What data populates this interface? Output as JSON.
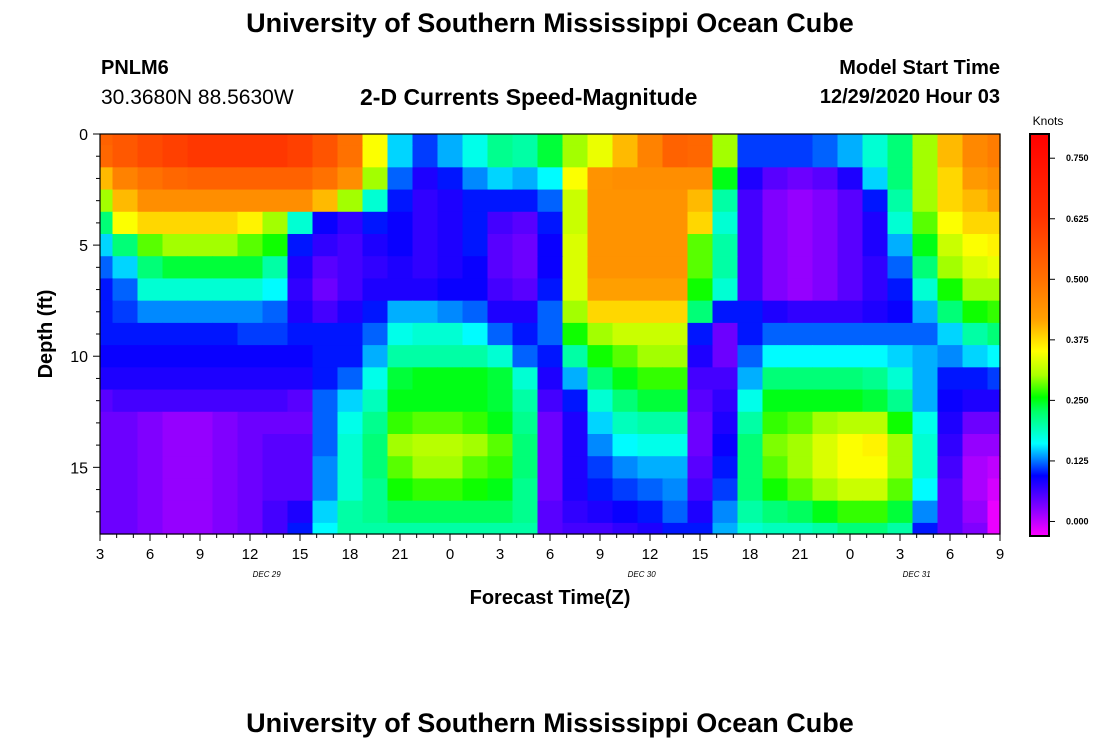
{
  "header": {
    "title": "University of Southern Mississippi Ocean Cube",
    "station_id": "PNLM6",
    "station_coords": "30.3680N 88.5630W",
    "model_start_label": "Model Start Time",
    "model_start_value": "12/29/2020 Hour 03"
  },
  "footer": {
    "title": "University of Southern Mississippi Ocean Cube"
  },
  "chart_data": {
    "type": "heatmap",
    "title": "2-D Currents Speed-Magnitude",
    "xlabel": "Forecast Time(Z)",
    "ylabel": "Depth (ft)",
    "x_tick_labels": [
      "3",
      "6",
      "9",
      "12",
      "15",
      "18",
      "21",
      "0",
      "3",
      "6",
      "9",
      "12",
      "15",
      "18",
      "21",
      "0",
      "3",
      "6",
      "9"
    ],
    "x_hours_from_start": [
      0,
      3,
      6,
      9,
      12,
      15,
      18,
      21,
      24,
      27,
      30,
      33,
      36,
      39,
      42,
      45,
      48,
      51,
      54
    ],
    "xlim_hours": [
      0,
      54
    ],
    "date_labels": [
      {
        "text": "DEC  29",
        "hour": 10
      },
      {
        "text": "DEC  30",
        "hour": 32.5
      },
      {
        "text": "DEC  31",
        "hour": 49
      }
    ],
    "y_tick_labels": [
      "0",
      "5",
      "10",
      "15"
    ],
    "y_ticks": [
      0,
      5,
      10,
      15
    ],
    "ylim": [
      0,
      18
    ],
    "y_inverted": true,
    "grid": false,
    "colorbar": {
      "title": "Knots",
      "range": [
        -0.03,
        0.8
      ],
      "tick_labels": [
        "0.000",
        "0.125",
        "0.250",
        "0.375",
        "0.500",
        "0.625",
        "0.750"
      ],
      "tick_values": [
        0,
        0.125,
        0.25,
        0.375,
        0.5,
        0.625,
        0.75
      ]
    },
    "speed_grid": {
      "time_hours": [
        0,
        1.5,
        3,
        4.5,
        6,
        7.5,
        9,
        10.5,
        12,
        13.5,
        15,
        16.5,
        18,
        19.5,
        21,
        22.5,
        24,
        25.5,
        27,
        28.5,
        30,
        31.5,
        33,
        34.5,
        36,
        37.5,
        39,
        40.5,
        42,
        43.5,
        45,
        46.5,
        48,
        49.5,
        51,
        52.5,
        54
      ],
      "depth_ft": [
        0,
        1,
        2,
        3,
        4,
        5,
        6,
        7,
        8,
        9,
        10,
        11,
        12,
        13,
        14,
        15,
        16,
        17,
        18
      ],
      "values": [
        [
          0.53,
          0.55,
          0.58,
          0.6,
          0.62,
          0.62,
          0.62,
          0.62,
          0.6,
          0.56,
          0.5,
          0.35,
          0.15,
          0.11,
          0.14,
          0.17,
          0.21,
          0.2,
          0.24,
          0.3,
          0.34,
          0.4,
          0.47,
          0.53,
          0.52,
          0.3,
          0.11,
          0.11,
          0.11,
          0.12,
          0.14,
          0.18,
          0.22,
          0.3,
          0.4,
          0.46,
          0.48
        ],
        [
          0.52,
          0.55,
          0.58,
          0.6,
          0.62,
          0.62,
          0.62,
          0.62,
          0.6,
          0.56,
          0.5,
          0.35,
          0.15,
          0.11,
          0.14,
          0.17,
          0.21,
          0.2,
          0.24,
          0.3,
          0.34,
          0.4,
          0.47,
          0.53,
          0.52,
          0.3,
          0.11,
          0.11,
          0.11,
          0.12,
          0.14,
          0.18,
          0.22,
          0.3,
          0.4,
          0.46,
          0.48
        ],
        [
          0.4,
          0.47,
          0.5,
          0.52,
          0.53,
          0.53,
          0.53,
          0.53,
          0.53,
          0.5,
          0.45,
          0.3,
          0.12,
          0.08,
          0.1,
          0.13,
          0.15,
          0.14,
          0.16,
          0.35,
          0.44,
          0.45,
          0.45,
          0.45,
          0.45,
          0.25,
          0.08,
          0.05,
          0.04,
          0.05,
          0.08,
          0.15,
          0.22,
          0.3,
          0.38,
          0.43,
          0.45
        ],
        [
          0.3,
          0.4,
          0.45,
          0.45,
          0.45,
          0.45,
          0.45,
          0.45,
          0.45,
          0.4,
          0.3,
          0.18,
          0.1,
          0.07,
          0.08,
          0.1,
          0.1,
          0.1,
          0.12,
          0.32,
          0.44,
          0.44,
          0.44,
          0.44,
          0.4,
          0.2,
          0.06,
          0.03,
          0.02,
          0.03,
          0.05,
          0.1,
          0.2,
          0.3,
          0.38,
          0.4,
          0.42
        ],
        [
          0.22,
          0.35,
          0.38,
          0.38,
          0.38,
          0.38,
          0.36,
          0.3,
          0.18,
          0.09,
          0.07,
          0.1,
          0.09,
          0.07,
          0.08,
          0.1,
          0.06,
          0.05,
          0.1,
          0.32,
          0.44,
          0.44,
          0.44,
          0.44,
          0.38,
          0.18,
          0.06,
          0.03,
          0.02,
          0.03,
          0.05,
          0.08,
          0.18,
          0.28,
          0.35,
          0.38,
          0.38
        ],
        [
          0.15,
          0.22,
          0.28,
          0.3,
          0.3,
          0.3,
          0.28,
          0.26,
          0.1,
          0.07,
          0.06,
          0.08,
          0.09,
          0.07,
          0.08,
          0.1,
          0.05,
          0.04,
          0.09,
          0.33,
          0.44,
          0.44,
          0.44,
          0.44,
          0.28,
          0.2,
          0.06,
          0.03,
          0.02,
          0.03,
          0.05,
          0.08,
          0.14,
          0.25,
          0.32,
          0.35,
          0.36
        ],
        [
          0.12,
          0.15,
          0.22,
          0.24,
          0.24,
          0.24,
          0.24,
          0.2,
          0.08,
          0.05,
          0.06,
          0.07,
          0.08,
          0.07,
          0.08,
          0.09,
          0.05,
          0.04,
          0.09,
          0.33,
          0.44,
          0.44,
          0.44,
          0.44,
          0.28,
          0.2,
          0.06,
          0.03,
          0.02,
          0.03,
          0.05,
          0.07,
          0.12,
          0.22,
          0.3,
          0.33,
          0.34
        ],
        [
          0.1,
          0.12,
          0.18,
          0.18,
          0.18,
          0.18,
          0.18,
          0.16,
          0.07,
          0.04,
          0.06,
          0.08,
          0.08,
          0.08,
          0.09,
          0.09,
          0.06,
          0.05,
          0.1,
          0.33,
          0.42,
          0.42,
          0.42,
          0.42,
          0.26,
          0.18,
          0.06,
          0.03,
          0.02,
          0.03,
          0.05,
          0.07,
          0.1,
          0.18,
          0.26,
          0.3,
          0.3
        ],
        [
          0.1,
          0.11,
          0.13,
          0.13,
          0.13,
          0.13,
          0.13,
          0.12,
          0.08,
          0.06,
          0.08,
          0.1,
          0.14,
          0.14,
          0.13,
          0.12,
          0.08,
          0.08,
          0.12,
          0.3,
          0.38,
          0.38,
          0.38,
          0.38,
          0.22,
          0.1,
          0.1,
          0.08,
          0.07,
          0.07,
          0.07,
          0.08,
          0.09,
          0.14,
          0.22,
          0.26,
          0.27
        ],
        [
          0.1,
          0.1,
          0.1,
          0.1,
          0.1,
          0.1,
          0.11,
          0.11,
          0.1,
          0.1,
          0.1,
          0.12,
          0.17,
          0.18,
          0.18,
          0.16,
          0.12,
          0.1,
          0.12,
          0.26,
          0.3,
          0.32,
          0.32,
          0.32,
          0.1,
          0.04,
          0.1,
          0.12,
          0.12,
          0.12,
          0.12,
          0.12,
          0.12,
          0.12,
          0.15,
          0.2,
          0.22
        ],
        [
          0.09,
          0.09,
          0.09,
          0.09,
          0.09,
          0.09,
          0.09,
          0.09,
          0.09,
          0.1,
          0.1,
          0.14,
          0.2,
          0.2,
          0.2,
          0.2,
          0.18,
          0.12,
          0.1,
          0.2,
          0.26,
          0.28,
          0.3,
          0.3,
          0.08,
          0.04,
          0.12,
          0.16,
          0.16,
          0.16,
          0.16,
          0.16,
          0.15,
          0.14,
          0.13,
          0.15,
          0.16
        ],
        [
          0.08,
          0.08,
          0.08,
          0.08,
          0.08,
          0.08,
          0.08,
          0.08,
          0.08,
          0.1,
          0.12,
          0.17,
          0.24,
          0.25,
          0.25,
          0.25,
          0.24,
          0.18,
          0.08,
          0.14,
          0.22,
          0.25,
          0.27,
          0.27,
          0.06,
          0.06,
          0.14,
          0.22,
          0.22,
          0.22,
          0.22,
          0.21,
          0.18,
          0.14,
          0.1,
          0.1,
          0.11
        ],
        [
          0.05,
          0.06,
          0.06,
          0.06,
          0.06,
          0.06,
          0.06,
          0.06,
          0.05,
          0.12,
          0.15,
          0.19,
          0.25,
          0.25,
          0.25,
          0.25,
          0.24,
          0.2,
          0.06,
          0.1,
          0.18,
          0.22,
          0.24,
          0.24,
          0.05,
          0.07,
          0.17,
          0.25,
          0.25,
          0.25,
          0.25,
          0.24,
          0.21,
          0.14,
          0.09,
          0.08,
          0.08
        ],
        [
          0.04,
          0.04,
          0.03,
          0.02,
          0.02,
          0.03,
          0.04,
          0.04,
          0.04,
          0.12,
          0.17,
          0.21,
          0.27,
          0.28,
          0.28,
          0.27,
          0.25,
          0.21,
          0.04,
          0.08,
          0.15,
          0.19,
          0.2,
          0.2,
          0.04,
          0.08,
          0.2,
          0.27,
          0.28,
          0.3,
          0.31,
          0.31,
          0.26,
          0.17,
          0.08,
          0.04,
          0.04
        ],
        [
          0.04,
          0.04,
          0.03,
          0.02,
          0.02,
          0.03,
          0.04,
          0.05,
          0.05,
          0.12,
          0.18,
          0.22,
          0.3,
          0.31,
          0.31,
          0.3,
          0.28,
          0.22,
          0.04,
          0.08,
          0.13,
          0.16,
          0.17,
          0.17,
          0.04,
          0.09,
          0.22,
          0.29,
          0.3,
          0.33,
          0.35,
          0.36,
          0.3,
          0.18,
          0.07,
          0.02,
          0.02
        ],
        [
          0.04,
          0.04,
          0.03,
          0.02,
          0.02,
          0.03,
          0.04,
          0.05,
          0.05,
          0.13,
          0.18,
          0.22,
          0.28,
          0.3,
          0.3,
          0.28,
          0.27,
          0.22,
          0.04,
          0.08,
          0.11,
          0.13,
          0.14,
          0.14,
          0.05,
          0.1,
          0.22,
          0.28,
          0.3,
          0.33,
          0.35,
          0.35,
          0.3,
          0.18,
          0.06,
          0.01,
          0.0
        ],
        [
          0.04,
          0.04,
          0.03,
          0.02,
          0.02,
          0.03,
          0.04,
          0.05,
          0.05,
          0.13,
          0.18,
          0.21,
          0.26,
          0.27,
          0.27,
          0.26,
          0.25,
          0.21,
          0.04,
          0.08,
          0.1,
          0.11,
          0.12,
          0.13,
          0.06,
          0.11,
          0.22,
          0.26,
          0.28,
          0.3,
          0.32,
          0.32,
          0.28,
          0.16,
          0.05,
          0.01,
          -0.01
        ],
        [
          0.04,
          0.04,
          0.03,
          0.02,
          0.02,
          0.03,
          0.04,
          0.06,
          0.08,
          0.15,
          0.2,
          0.21,
          0.23,
          0.23,
          0.23,
          0.23,
          0.23,
          0.21,
          0.05,
          0.07,
          0.08,
          0.09,
          0.1,
          0.12,
          0.08,
          0.13,
          0.2,
          0.22,
          0.23,
          0.25,
          0.27,
          0.27,
          0.24,
          0.13,
          0.05,
          0.02,
          -0.02
        ],
        [
          0.04,
          0.04,
          0.03,
          0.02,
          0.02,
          0.03,
          0.04,
          0.06,
          0.1,
          0.16,
          0.2,
          0.2,
          0.2,
          0.2,
          0.2,
          0.2,
          0.2,
          0.2,
          0.05,
          0.06,
          0.06,
          0.07,
          0.08,
          0.1,
          0.1,
          0.14,
          0.18,
          0.19,
          0.19,
          0.2,
          0.22,
          0.22,
          0.2,
          0.1,
          0.05,
          0.03,
          -0.02
        ]
      ]
    }
  }
}
